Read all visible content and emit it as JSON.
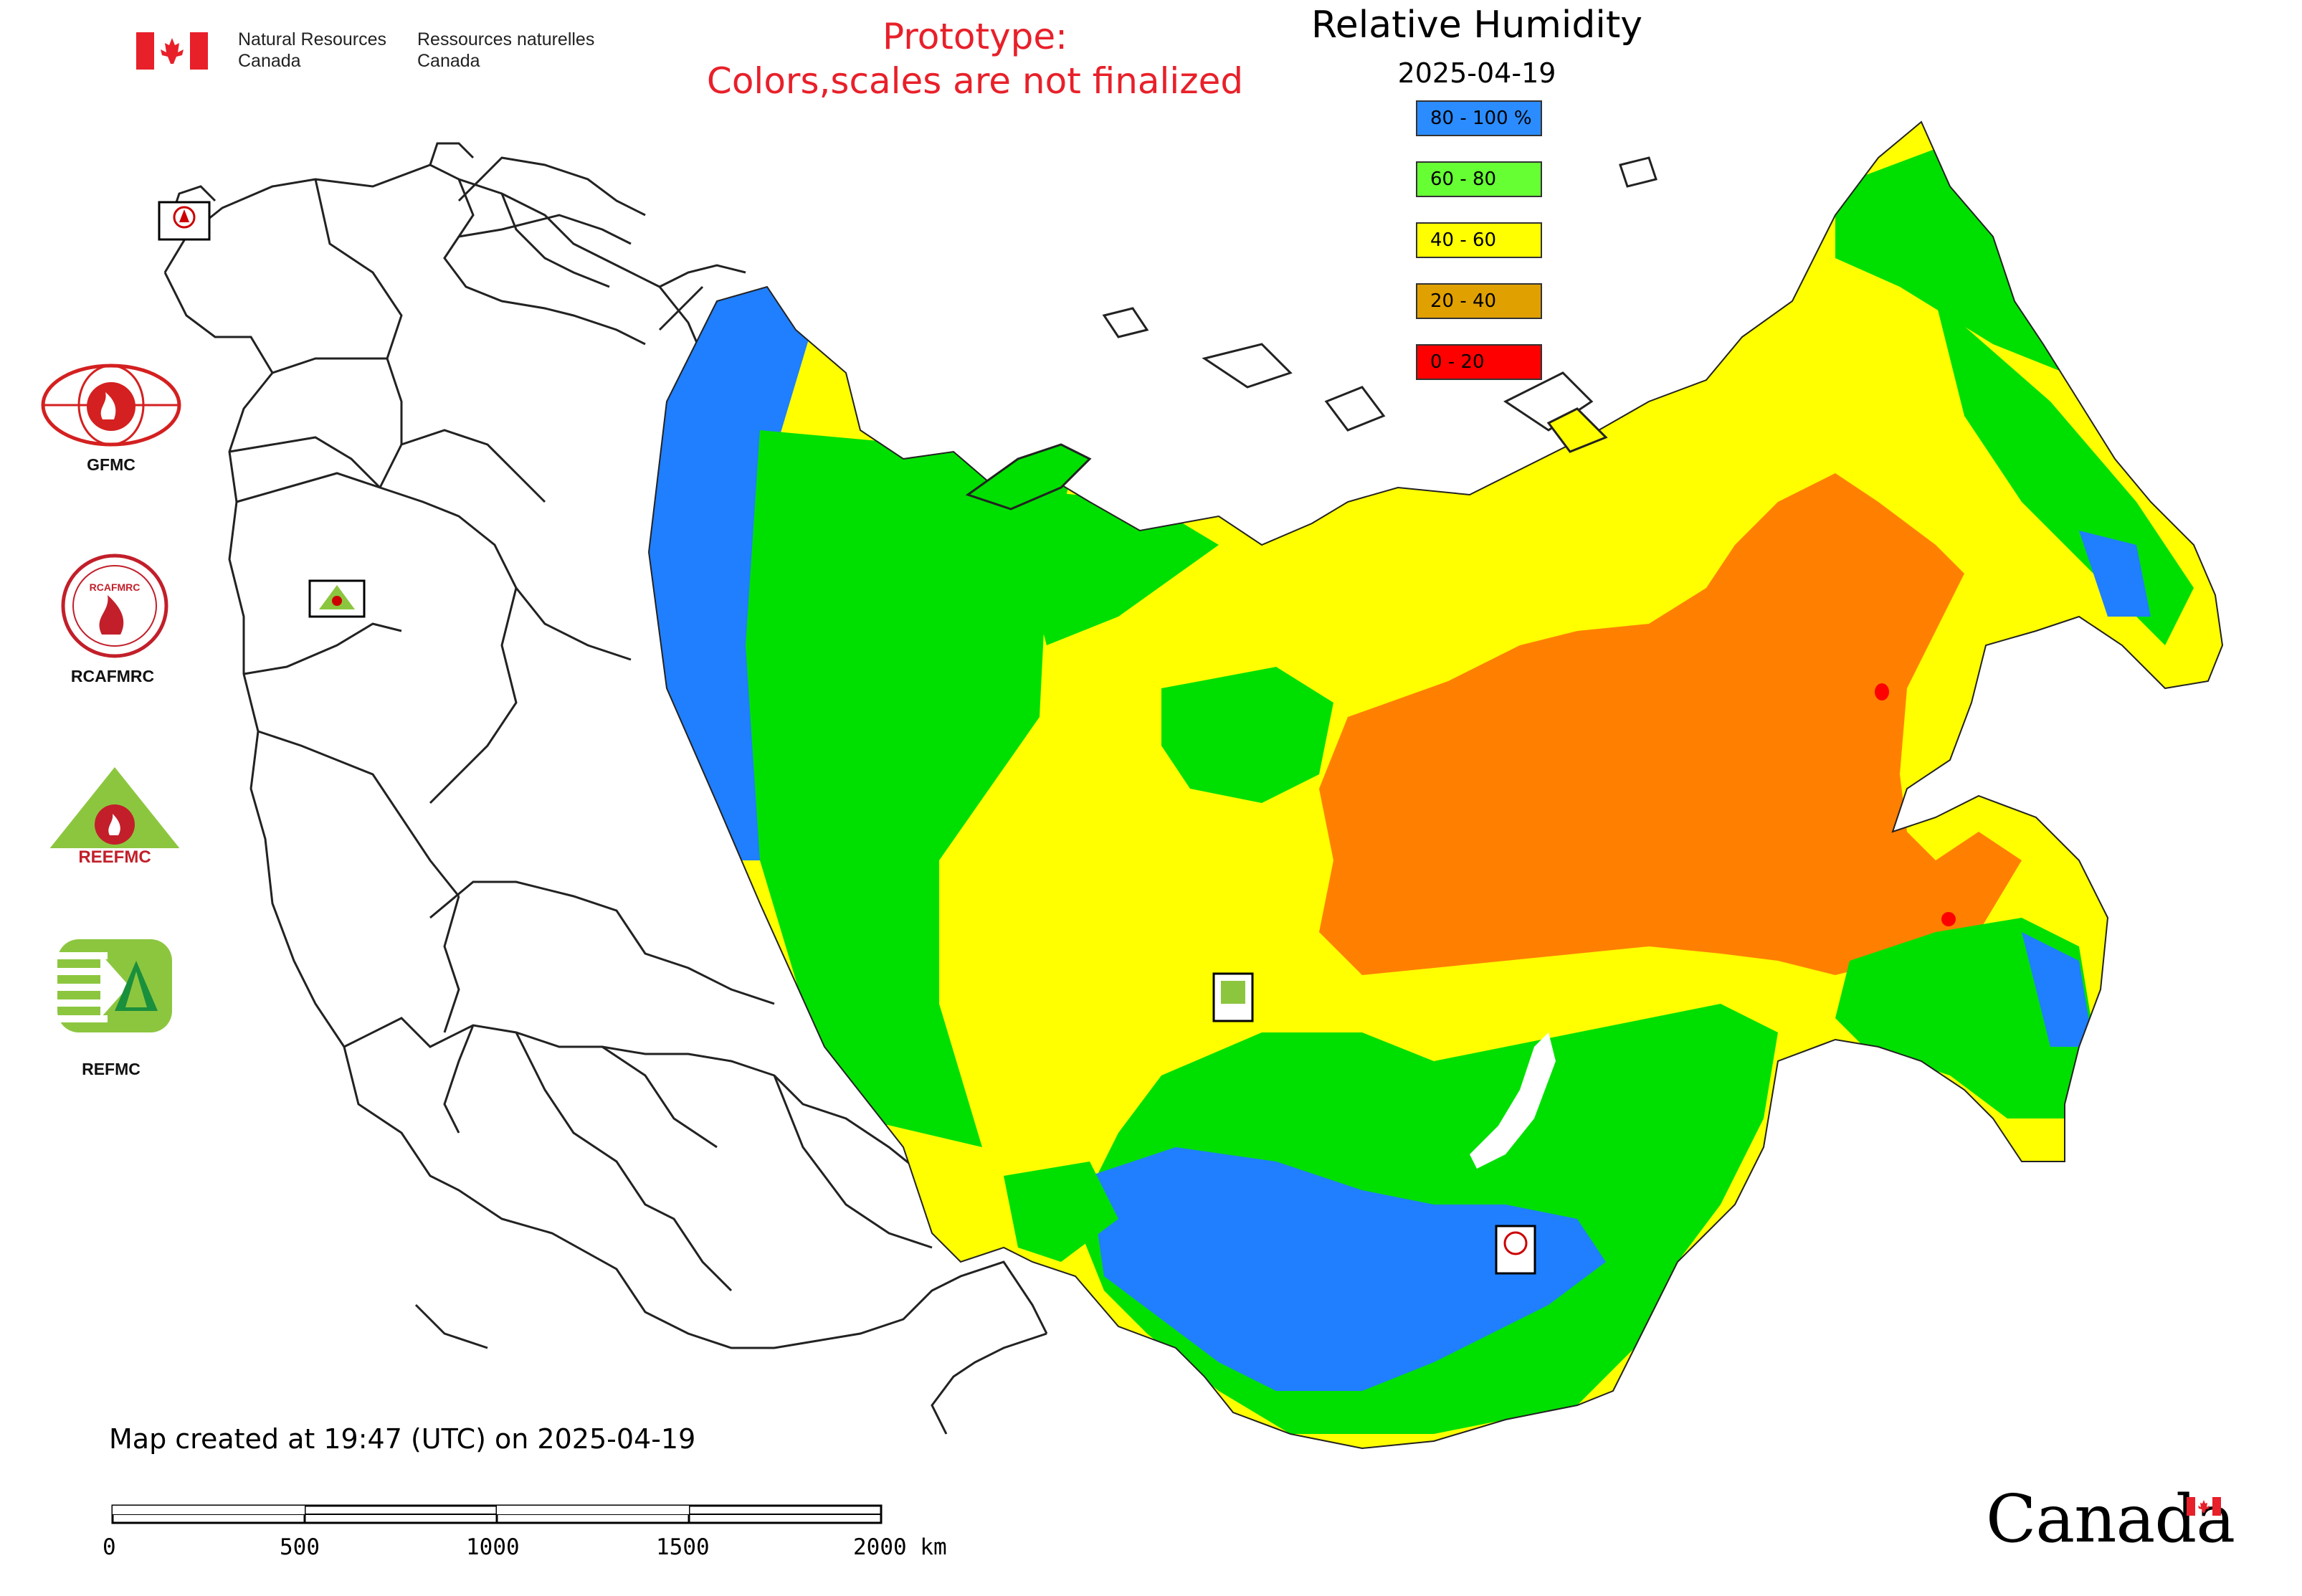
{
  "header": {
    "gov_en_line1": "Natural Resources",
    "gov_en_line2": "Canada",
    "gov_fr_line1": "Ressources naturelles",
    "gov_fr_line2": "Canada",
    "prototype_line1": "Prototype:",
    "prototype_line2": "Colors,scales are not finalized",
    "title": "Relative Humidity",
    "date": "2025-04-19"
  },
  "legend": {
    "items": [
      {
        "label": "80 - 100 %",
        "color": "#2b8cff"
      },
      {
        "label": "60 - 80",
        "color": "#66ff33"
      },
      {
        "label": "40 - 60",
        "color": "#ffff00"
      },
      {
        "label": "20 - 40",
        "color": "#e0a000"
      },
      {
        "label": "0 - 20",
        "color": "#ff0000"
      }
    ]
  },
  "logos": {
    "gfmc": "GFMC",
    "rcafmrc": "RCAFMRC",
    "reefmc": "REEFMC",
    "refmc": "REFMC",
    "reefmc_mark_text": "REEFMC"
  },
  "map_colors": {
    "blue": "#1f7fff",
    "green": "#00e000",
    "yellow": "#ffff00",
    "orange": "#ff8000",
    "red": "#ff0000"
  },
  "footer": {
    "created": "Map created at 19:47 (UTC) on 2025-04-19",
    "scale_ticks": [
      "0",
      "500",
      "1000",
      "1500",
      "2000 km"
    ],
    "wordmark": "Canada"
  }
}
